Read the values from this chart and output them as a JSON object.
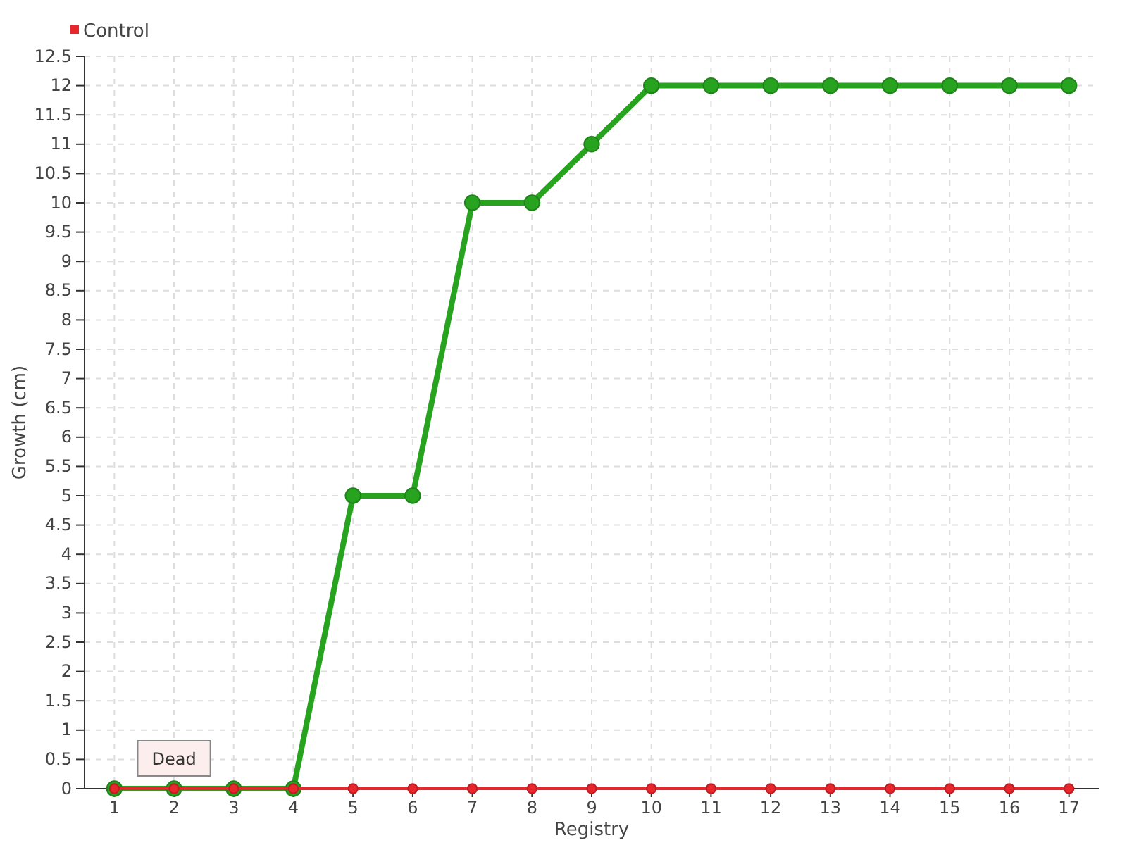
{
  "chart_data": {
    "type": "line",
    "xlabel": "Registry",
    "ylabel": "Growth (cm)",
    "categories": [
      "1",
      "2",
      "3",
      "4",
      "5",
      "6",
      "7",
      "8",
      "9",
      "10",
      "11",
      "12",
      "13",
      "14",
      "15",
      "16",
      "17"
    ],
    "series": [
      {
        "color": "#27a31f",
        "values": [
          0,
          0,
          0,
          0,
          5,
          5,
          10,
          10,
          11,
          12,
          12,
          12,
          12,
          12,
          12,
          12,
          12
        ]
      },
      {
        "name": "Control",
        "color": "#e8262b",
        "values": [
          0,
          0,
          0,
          0,
          0,
          0,
          0,
          0,
          0,
          0,
          0,
          0,
          0,
          0,
          0,
          0,
          0
        ]
      }
    ],
    "ylim": [
      0,
      12.5
    ],
    "yticks": [
      0,
      0.5,
      1,
      1.5,
      2,
      2.5,
      3,
      3.5,
      4,
      4.5,
      5,
      5.5,
      6,
      6.5,
      7,
      7.5,
      8,
      8.5,
      9,
      9.5,
      10,
      10.5,
      11,
      11.5,
      12,
      12.5
    ],
    "grid": true,
    "legend": "top left",
    "marker": "circle",
    "line_style": "solid",
    "annotations": [
      {
        "text": "Dead",
        "x": "2",
        "y": 0
      }
    ]
  }
}
